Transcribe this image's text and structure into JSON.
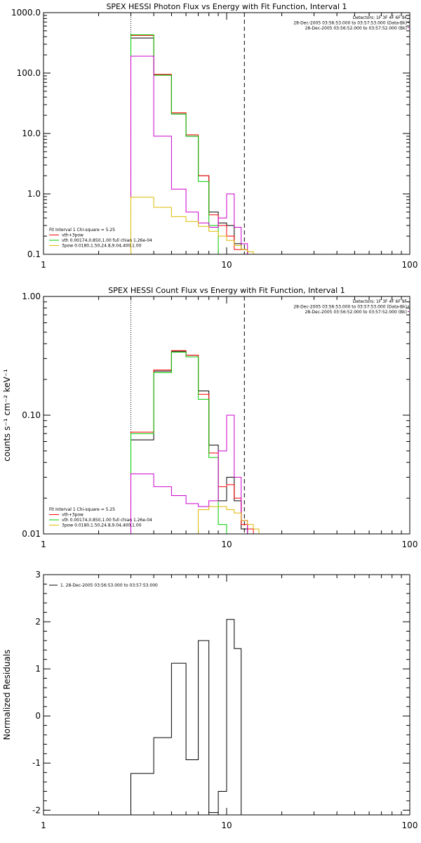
{
  "chart_data": [
    {
      "type": "line",
      "title": "SPEX HESSI Photon Flux vs Energy with Fit Function, Interval 1",
      "ylabel": "",
      "xscale": "log",
      "yscale": "log",
      "xlim": [
        1,
        100
      ],
      "ylim": [
        0.1,
        1000
      ],
      "x_ticks": [
        "1",
        "10",
        "100"
      ],
      "y_ticks": [
        "0.1",
        "1.0",
        "10.0",
        "100.0",
        "1000.0"
      ],
      "vlines": [
        {
          "x": 3.0,
          "style": "dotted"
        },
        {
          "x": 12.5,
          "style": "dashed"
        }
      ],
      "info_lines": [
        "Detectors: 1F 3F 4F 6F 9F",
        "28-Dec-2005 03:56:53.000 to 03:57:53.000 (Data-Bk)",
        "28-Dec-2005 03:56:52.000 to 03:57:52.000 (Bk)"
      ],
      "legend_lines": [
        "Fit Interval 1    Chi-square = 5.25",
        "vth+3pow",
        "vth 0.00174,0.850,1.00   full chian 1.26e-04",
        "3pow 0.0180,1.50,24.8,9.04,400,1.00"
      ],
      "bin_edges": [
        3,
        4,
        5,
        6,
        7,
        8,
        9,
        10,
        11,
        12,
        13,
        14,
        15
      ],
      "series": [
        {
          "color": "#000000",
          "values": [
            380,
            93,
            21,
            9,
            2.0,
            0.5,
            0.33,
            0.3,
            0.15,
            0.12,
            0.1,
            0.1
          ]
        },
        {
          "color": "#ff0000",
          "values": [
            420,
            95,
            22,
            9.5,
            2.0,
            0.45,
            0.3,
            0.2,
            0.12,
            0.12,
            0.1,
            0.1
          ]
        },
        {
          "color": "#00cc00",
          "values": [
            430,
            92,
            21,
            9.0,
            1.6,
            0.3,
            0.1,
            0.1
          ]
        },
        {
          "color": "#cc00cc",
          "values": [
            190,
            9,
            1.2,
            0.5,
            0.33,
            0.28,
            0.4,
            1.0,
            0.28,
            0.15
          ]
        },
        {
          "color": "#ddbb00",
          "values": [
            0.88,
            0.6,
            0.42,
            0.35,
            0.29,
            0.24,
            0.2,
            0.17,
            0.14,
            0.12,
            0.11,
            0.1
          ]
        }
      ]
    },
    {
      "type": "line",
      "title": "SPEX HESSI Count Flux vs Energy with Fit Function, Interval 1",
      "ylabel": "counts s⁻¹ cm⁻² keV⁻¹",
      "xscale": "log",
      "yscale": "log",
      "xlim": [
        1,
        100
      ],
      "ylim": [
        0.01,
        1
      ],
      "x_ticks": [
        "1",
        "10",
        "100"
      ],
      "y_ticks": [
        "0.01",
        "0.10",
        "1.00"
      ],
      "vlines": [
        {
          "x": 3.0,
          "style": "dotted"
        },
        {
          "x": 12.5,
          "style": "dashed"
        }
      ],
      "info_lines": [
        "Detectors: 1F 3F 4F 6F 9F",
        "28-Dec-2005 03:56:53.000 to 03:57:53.000 (Data-Bk)",
        "28-Dec-2005 03:56:52.000 to 03:57:52.000 (Bk)"
      ],
      "legend_lines": [
        "Fit Interval 1    Chi-square = 5.25",
        "vth+3pow",
        "vth 0.00174,0.850,1.00   full chian 1.26e-04",
        "3pow 0.0180,1.50,24.8,9.04,400,1.00"
      ],
      "bin_edges": [
        3,
        4,
        5,
        6,
        7,
        8,
        9,
        10,
        11,
        12,
        13,
        14,
        15,
        16
      ],
      "series": [
        {
          "color": "#000000",
          "values": [
            0.062,
            0.235,
            0.345,
            0.32,
            0.16,
            0.056,
            0.019,
            0.03,
            0.019,
            0.011,
            0.01
          ]
        },
        {
          "color": "#ff0000",
          "values": [
            0.072,
            0.24,
            0.35,
            0.32,
            0.15,
            0.048,
            0.025,
            0.026,
            0.02,
            0.012,
            0.011,
            0.01
          ]
        },
        {
          "color": "#00cc00",
          "values": [
            0.07,
            0.228,
            0.34,
            0.31,
            0.136,
            0.044,
            0.012,
            0.01
          ]
        },
        {
          "color": "#cc00cc",
          "values": [
            0.032,
            0.025,
            0.021,
            0.018,
            0.017,
            0.019,
            0.05,
            0.1,
            0.03,
            0.013
          ]
        },
        {
          "color": "#ddbb00",
          "values": [
            0.01,
            0.01,
            0.01,
            0.01,
            0.016,
            0.017,
            0.017,
            0.016,
            0.015,
            0.013,
            0.012,
            0.011,
            0.01
          ]
        }
      ]
    },
    {
      "type": "line",
      "title": "",
      "ylabel": "Normalized Residuals",
      "xscale": "log",
      "yscale": "linear",
      "xlim": [
        1,
        100
      ],
      "ylim": [
        -2.1,
        3
      ],
      "x_ticks": [
        "1",
        "10",
        "100"
      ],
      "y_ticks": [
        "-2",
        "-1",
        "0",
        "1",
        "2",
        "3"
      ],
      "legend_lines": [
        "1. 28-Dec-2005 03:56:53.000 to 03:57:53.000"
      ],
      "bin_edges": [
        3,
        4,
        5,
        6,
        7,
        8,
        9,
        10,
        11,
        12
      ],
      "series": [
        {
          "color": "#000000",
          "values": [
            -1.22,
            -0.46,
            1.12,
            -0.93,
            1.6,
            -2.05,
            -1.6,
            2.05,
            1.43
          ]
        }
      ]
    }
  ]
}
